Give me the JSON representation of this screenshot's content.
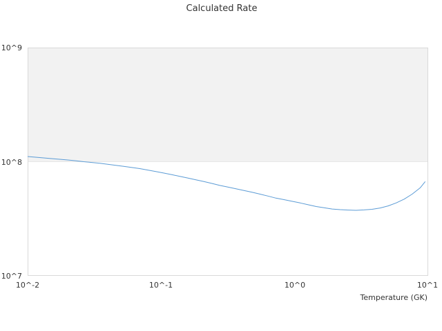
{
  "chart_data": {
    "type": "line",
    "title": "Calculated Rate",
    "xlabel": "Temperature (GK)",
    "ylabel": "",
    "xscale": "log",
    "yscale": "log",
    "xlim": [
      0.01,
      10
    ],
    "ylim": [
      10000000,
      1000000000
    ],
    "grid": false,
    "legend": "none",
    "x_tick_labels": [
      "10^-2",
      "10^-1",
      "10^0",
      "10^1"
    ],
    "y_tick_labels": [
      "10^7",
      "10^8",
      "10^9"
    ],
    "band": {
      "y_from": 100000000,
      "y_to": 1000000000,
      "color": "#f2f2f2"
    },
    "colors": {
      "line": "#5b9bd5",
      "plot_border": "#d9d9d9",
      "band_edge": "#e6e6e6"
    },
    "series": [
      {
        "x": [
          0.01,
          0.0115,
          0.0132,
          0.0151,
          0.0174,
          0.02,
          0.0229,
          0.0263,
          0.0302,
          0.0347,
          0.0398,
          0.0457,
          0.0525,
          0.0603,
          0.0692,
          0.0794,
          0.0912,
          0.105,
          0.12,
          0.138,
          0.158,
          0.182,
          0.209,
          0.24,
          0.275,
          0.316,
          0.363,
          0.417,
          0.479,
          0.55,
          0.631,
          0.724,
          0.832,
          0.955,
          1.1,
          1.26,
          1.45,
          1.66,
          1.91,
          2.19,
          2.51,
          2.88,
          3.31,
          3.8,
          4.37,
          5.01,
          5.75,
          6.61,
          7.59,
          8.71,
          9.5
        ],
        "y": [
          111000000,
          109500000,
          108000000,
          106500000,
          105000000,
          103500000,
          102000000,
          100000000,
          98500000,
          97000000,
          95000000,
          93000000,
          91000000,
          89000000,
          87000000,
          84500000,
          82000000,
          79500000,
          77000000,
          74500000,
          72000000,
          69500000,
          67000000,
          64500000,
          62000000,
          60000000,
          58000000,
          56000000,
          54000000,
          52000000,
          50000000,
          48000000,
          46500000,
          45000000,
          43500000,
          42000000,
          40500000,
          39500000,
          38500000,
          38000000,
          37700000,
          37500000,
          37800000,
          38300000,
          39300000,
          41000000,
          43500000,
          47000000,
          52000000,
          59000000,
          67000000
        ]
      }
    ]
  }
}
